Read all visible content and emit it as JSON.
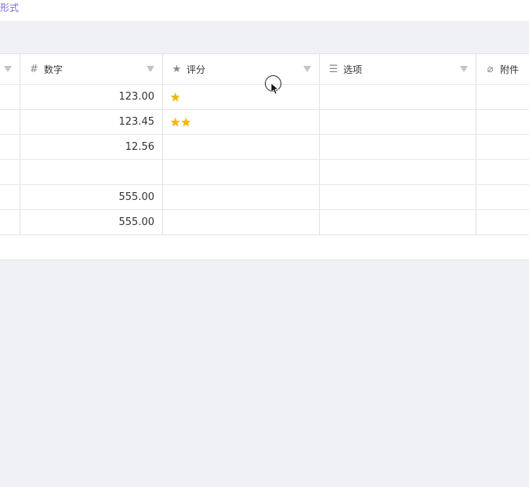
{
  "top": {
    "link_text": "形式"
  },
  "columns": [
    {
      "label": "",
      "icon": "none"
    },
    {
      "label": "数字",
      "icon": "hash-icon"
    },
    {
      "label": "评分",
      "icon": "star-icon"
    },
    {
      "label": "选项",
      "icon": "list-options-icon"
    },
    {
      "label": "附件",
      "icon": "paperclip-icon"
    }
  ],
  "rows": [
    {
      "number": "123.00",
      "rating": 1
    },
    {
      "number": "123.45",
      "rating": 2
    },
    {
      "number": "12.56",
      "rating": 0
    },
    {
      "number": "",
      "rating": 0
    },
    {
      "number": "555.00",
      "rating": 0
    },
    {
      "number": "555.00",
      "rating": 0
    }
  ],
  "colors": {
    "accent": "#7b67ee",
    "star": "#f5b800",
    "background": "#f0f1f5"
  }
}
